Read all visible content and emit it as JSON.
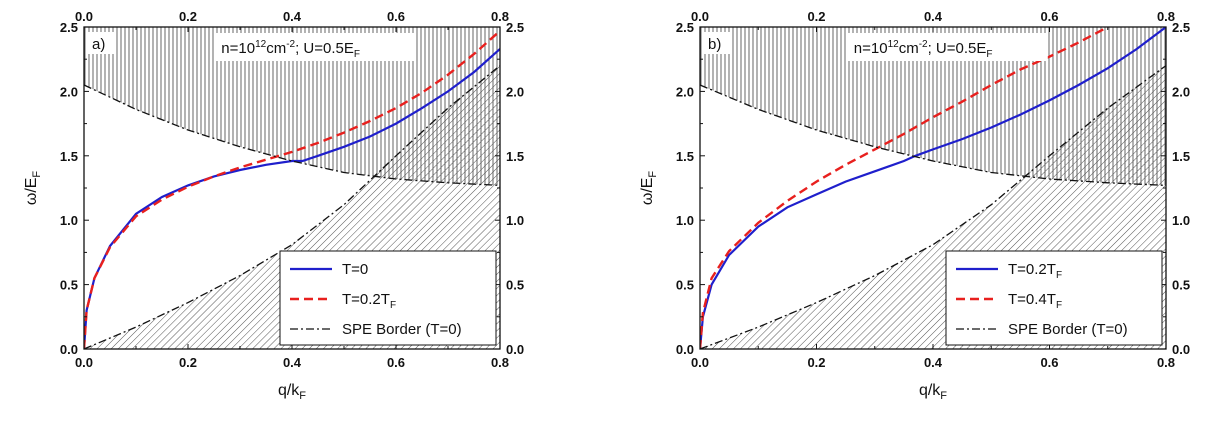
{
  "chart_data": [
    {
      "type": "line",
      "panel_label": "a)",
      "annotation": {
        "base": "n=10",
        "sup": "12",
        "mid": "cm",
        "sup2": "-2",
        "rest": "; U=0.5E",
        "sub": "F"
      },
      "xlabel": {
        "main": "q/k",
        "sub": "F"
      },
      "ylabel": {
        "main": "ω/E",
        "sub": "F"
      },
      "xlim": [
        0,
        0.8
      ],
      "ylim": [
        0,
        2.5
      ],
      "x_ticks": [
        "0.0",
        "0.2",
        "0.4",
        "0.6",
        "0.8"
      ],
      "y_ticks": [
        "0.0",
        "0.5",
        "1.0",
        "1.5",
        "2.0",
        "2.5"
      ],
      "legend_position": "bottom-right",
      "series": [
        {
          "name": "T=0",
          "name_main": "T=0",
          "name_sub": "",
          "color": "#1f1fcc",
          "style": "solid",
          "x": [
            0.0,
            0.005,
            0.02,
            0.05,
            0.1,
            0.15,
            0.2,
            0.25,
            0.3,
            0.35,
            0.4,
            0.42,
            0.45,
            0.5,
            0.55,
            0.6,
            0.65,
            0.7,
            0.75,
            0.8
          ],
          "y": [
            0.0,
            0.3,
            0.55,
            0.8,
            1.05,
            1.18,
            1.27,
            1.34,
            1.39,
            1.43,
            1.46,
            1.46,
            1.5,
            1.57,
            1.65,
            1.75,
            1.87,
            2.0,
            2.15,
            2.33
          ]
        },
        {
          "name": "T=0.2T_F",
          "name_main": "T=0.2T",
          "name_sub": "F",
          "color": "#e8201e",
          "style": "dashed",
          "x": [
            0.0,
            0.005,
            0.02,
            0.05,
            0.1,
            0.15,
            0.2,
            0.25,
            0.3,
            0.35,
            0.4,
            0.45,
            0.5,
            0.55,
            0.6,
            0.65,
            0.7,
            0.75,
            0.8
          ],
          "y": [
            0.0,
            0.3,
            0.55,
            0.79,
            1.03,
            1.16,
            1.26,
            1.34,
            1.41,
            1.47,
            1.53,
            1.6,
            1.68,
            1.77,
            1.87,
            1.99,
            2.13,
            2.29,
            2.47
          ]
        },
        {
          "name": "SPE Border (T=0)",
          "name_main": "SPE Border (T=0)",
          "name_sub": "",
          "color": "#111111",
          "style": "dashdot",
          "x": [
            0.0,
            0.1,
            0.2,
            0.3,
            0.4,
            0.5,
            0.54,
            0.6,
            0.7,
            0.8
          ],
          "y": [
            2.05,
            1.86,
            1.7,
            1.57,
            1.46,
            1.37,
            1.35,
            1.32,
            1.29,
            1.27
          ]
        },
        {
          "name": "",
          "name_main": "",
          "name_sub": "",
          "color": "#111111",
          "style": "dashdot",
          "x": [
            0.0,
            0.1,
            0.2,
            0.3,
            0.4,
            0.5,
            0.6,
            0.7,
            0.8
          ],
          "y": [
            0.0,
            0.17,
            0.36,
            0.57,
            0.81,
            1.12,
            1.5,
            1.87,
            2.2
          ]
        }
      ]
    },
    {
      "type": "line",
      "panel_label": "b)",
      "annotation": {
        "base": "n=10",
        "sup": "12",
        "mid": "cm",
        "sup2": "-2",
        "rest": "; U=0.5E",
        "sub": "F"
      },
      "xlabel": {
        "main": "q/k",
        "sub": "F"
      },
      "ylabel": {
        "main": "ω/E",
        "sub": "F"
      },
      "xlim": [
        0,
        0.8
      ],
      "ylim": [
        0,
        2.5
      ],
      "x_ticks": [
        "0.0",
        "0.2",
        "0.4",
        "0.6",
        "0.8"
      ],
      "y_ticks": [
        "0.0",
        "0.5",
        "1.0",
        "1.5",
        "2.0",
        "2.5"
      ],
      "legend_position": "bottom-right",
      "series": [
        {
          "name": "T=0.2T_F",
          "name_main": "T=0.2T",
          "name_sub": "F",
          "color": "#1f1fcc",
          "style": "solid",
          "x": [
            0.0,
            0.005,
            0.02,
            0.05,
            0.1,
            0.15,
            0.2,
            0.25,
            0.3,
            0.35,
            0.37,
            0.4,
            0.45,
            0.5,
            0.55,
            0.6,
            0.65,
            0.7,
            0.75,
            0.8
          ],
          "y": [
            0.0,
            0.25,
            0.5,
            0.73,
            0.95,
            1.1,
            1.2,
            1.3,
            1.38,
            1.46,
            1.5,
            1.55,
            1.63,
            1.72,
            1.82,
            1.93,
            2.05,
            2.18,
            2.33,
            2.5
          ]
        },
        {
          "name": "T=0.4T_F",
          "name_main": "T=0.4T",
          "name_sub": "F",
          "color": "#e8201e",
          "style": "dashed",
          "x": [
            0.0,
            0.005,
            0.02,
            0.05,
            0.1,
            0.15,
            0.2,
            0.25,
            0.3,
            0.35,
            0.4,
            0.45,
            0.5,
            0.55,
            0.6,
            0.65,
            0.7
          ],
          "y": [
            0.0,
            0.28,
            0.55,
            0.76,
            0.98,
            1.15,
            1.3,
            1.43,
            1.55,
            1.67,
            1.8,
            1.92,
            2.05,
            2.17,
            2.27,
            2.38,
            2.5
          ]
        },
        {
          "name": "SPE Border (T=0)",
          "name_main": "SPE Border (T=0)",
          "name_sub": "",
          "color": "#111111",
          "style": "dashdot",
          "x": [
            0.0,
            0.1,
            0.2,
            0.3,
            0.4,
            0.5,
            0.54,
            0.6,
            0.7,
            0.8
          ],
          "y": [
            2.05,
            1.86,
            1.7,
            1.57,
            1.46,
            1.37,
            1.35,
            1.32,
            1.29,
            1.27
          ]
        },
        {
          "name": "",
          "name_main": "",
          "name_sub": "",
          "color": "#111111",
          "style": "dashdot",
          "x": [
            0.0,
            0.1,
            0.2,
            0.3,
            0.4,
            0.5,
            0.6,
            0.7,
            0.8
          ],
          "y": [
            0.0,
            0.17,
            0.36,
            0.57,
            0.81,
            1.12,
            1.5,
            1.87,
            2.2
          ]
        }
      ]
    }
  ]
}
